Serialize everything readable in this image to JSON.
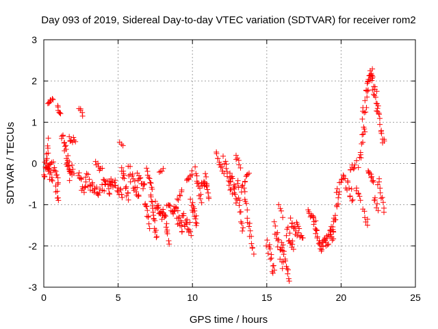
{
  "chart_data": {
    "type": "scatter",
    "title": "Day 093 of 2019, Sidereal Day-to-day VTEC variation (SDTVAR) for receiver rom2",
    "xlabel": "GPS time / hours",
    "ylabel": "SDTVAR / TECUs",
    "xlim": [
      0,
      25
    ],
    "ylim": [
      -3,
      3
    ],
    "x_ticks": [
      0,
      5,
      10,
      15,
      20,
      25
    ],
    "x_tick_labels": [
      "0",
      "5",
      "10",
      "15",
      "20",
      "25"
    ],
    "y_ticks": [
      -3,
      -2,
      -1,
      0,
      1,
      2,
      3
    ],
    "y_tick_labels": [
      "-3",
      "-2",
      "-1",
      "0",
      "1",
      "2",
      "3"
    ],
    "grid": true,
    "marker": "+",
    "color": "#ff0000",
    "segments": [
      {
        "t0": 0.0,
        "t1": 0.3,
        "y0": -0.4,
        "y1": 0.5,
        "n": 14,
        "spread": 0.18
      },
      {
        "t0": 0.1,
        "t1": 0.6,
        "y0": 0.0,
        "y1": -0.4,
        "n": 12,
        "spread": 0.15
      },
      {
        "t0": 0.3,
        "t1": 0.6,
        "y0": 1.45,
        "y1": 1.55,
        "n": 8,
        "spread": 0.04
      },
      {
        "t0": 0.3,
        "t1": 0.5,
        "y0": -0.2,
        "y1": 0.0,
        "n": 6,
        "spread": 0.1
      },
      {
        "t0": 0.6,
        "t1": 1.0,
        "y0": 0.0,
        "y1": -0.5,
        "n": 10,
        "spread": 0.12
      },
      {
        "t0": 0.9,
        "t1": 1.1,
        "y0": 1.4,
        "y1": 1.2,
        "n": 6,
        "spread": 0.05
      },
      {
        "t0": 0.8,
        "t1": 1.0,
        "y0": -0.6,
        "y1": -0.9,
        "n": 6,
        "spread": 0.08
      },
      {
        "t0": 1.2,
        "t1": 1.8,
        "y0": 0.8,
        "y1": -0.4,
        "n": 20,
        "spread": 0.2
      },
      {
        "t0": 1.7,
        "t1": 2.1,
        "y0": 0.6,
        "y1": 0.55,
        "n": 8,
        "spread": 0.07
      },
      {
        "t0": 1.6,
        "t1": 2.0,
        "y0": 0.2,
        "y1": -0.3,
        "n": 10,
        "spread": 0.15
      },
      {
        "t0": 2.4,
        "t1": 2.6,
        "y0": 1.35,
        "y1": 1.15,
        "n": 5,
        "spread": 0.05
      },
      {
        "t0": 2.3,
        "t1": 2.8,
        "y0": -0.3,
        "y1": -0.7,
        "n": 12,
        "spread": 0.15
      },
      {
        "t0": 2.8,
        "t1": 3.3,
        "y0": -0.3,
        "y1": -0.6,
        "n": 12,
        "spread": 0.15
      },
      {
        "t0": 3.3,
        "t1": 3.8,
        "y0": -0.6,
        "y1": -0.7,
        "n": 10,
        "spread": 0.1
      },
      {
        "t0": 3.5,
        "t1": 3.9,
        "y0": 0.1,
        "y1": -0.2,
        "n": 8,
        "spread": 0.1
      },
      {
        "t0": 3.9,
        "t1": 4.5,
        "y0": -0.5,
        "y1": -0.6,
        "n": 14,
        "spread": 0.15
      },
      {
        "t0": 4.4,
        "t1": 4.8,
        "y0": -0.4,
        "y1": -0.5,
        "n": 10,
        "spread": 0.12
      },
      {
        "t0": 4.8,
        "t1": 5.3,
        "y0": -0.6,
        "y1": -0.8,
        "n": 10,
        "spread": 0.12
      },
      {
        "t0": 5.1,
        "t1": 5.3,
        "y0": 0.5,
        "y1": 0.45,
        "n": 3,
        "spread": 0.03
      },
      {
        "t0": 5.2,
        "t1": 5.7,
        "y0": -0.1,
        "y1": -0.8,
        "n": 14,
        "spread": 0.15
      },
      {
        "t0": 5.7,
        "t1": 6.4,
        "y0": -0.1,
        "y1": -0.9,
        "n": 18,
        "spread": 0.18
      },
      {
        "t0": 6.3,
        "t1": 6.8,
        "y0": -0.3,
        "y1": -0.6,
        "n": 12,
        "spread": 0.12
      },
      {
        "t0": 6.8,
        "t1": 7.1,
        "y0": -0.9,
        "y1": -1.5,
        "n": 10,
        "spread": 0.12
      },
      {
        "t0": 6.9,
        "t1": 7.3,
        "y0": -0.2,
        "y1": -0.6,
        "n": 10,
        "spread": 0.1
      },
      {
        "t0": 7.2,
        "t1": 7.6,
        "y0": -0.8,
        "y1": -1.8,
        "n": 16,
        "spread": 0.15
      },
      {
        "t0": 7.5,
        "t1": 8.0,
        "y0": -1.0,
        "y1": -1.3,
        "n": 14,
        "spread": 0.12
      },
      {
        "t0": 7.8,
        "t1": 8.0,
        "y0": -0.2,
        "y1": -0.15,
        "n": 4,
        "spread": 0.03
      },
      {
        "t0": 8.0,
        "t1": 8.4,
        "y0": -1.0,
        "y1": -1.9,
        "n": 14,
        "spread": 0.15
      },
      {
        "t0": 8.3,
        "t1": 8.8,
        "y0": -1.0,
        "y1": -1.2,
        "n": 10,
        "spread": 0.1
      },
      {
        "t0": 8.8,
        "t1": 9.3,
        "y0": -1.0,
        "y1": -1.7,
        "n": 16,
        "spread": 0.15
      },
      {
        "t0": 9.0,
        "t1": 9.3,
        "y0": -0.9,
        "y1": -0.7,
        "n": 6,
        "spread": 0.06
      },
      {
        "t0": 9.3,
        "t1": 9.9,
        "y0": -1.3,
        "y1": -1.6,
        "n": 18,
        "spread": 0.15
      },
      {
        "t0": 9.6,
        "t1": 10.0,
        "y0": -0.4,
        "y1": -0.2,
        "n": 8,
        "spread": 0.05
      },
      {
        "t0": 9.9,
        "t1": 10.3,
        "y0": -1.0,
        "y1": -1.4,
        "n": 14,
        "spread": 0.15
      },
      {
        "t0": 10.2,
        "t1": 10.6,
        "y0": -0.2,
        "y1": -0.9,
        "n": 12,
        "spread": 0.15
      },
      {
        "t0": 10.6,
        "t1": 11.0,
        "y0": -0.4,
        "y1": -0.6,
        "n": 10,
        "spread": 0.1
      },
      {
        "t0": 10.9,
        "t1": 11.1,
        "y0": -0.3,
        "y1": -0.9,
        "n": 8,
        "spread": 0.08
      },
      {
        "t0": 11.6,
        "t1": 12.1,
        "y0": 0.2,
        "y1": -0.3,
        "n": 12,
        "spread": 0.1
      },
      {
        "t0": 12.1,
        "t1": 12.6,
        "y0": 0.1,
        "y1": -0.6,
        "n": 12,
        "spread": 0.15
      },
      {
        "t0": 12.5,
        "t1": 13.0,
        "y0": -0.3,
        "y1": -0.9,
        "n": 16,
        "spread": 0.2
      },
      {
        "t0": 12.9,
        "t1": 13.2,
        "y0": 0.2,
        "y1": -0.1,
        "n": 6,
        "spread": 0.08
      },
      {
        "t0": 13.0,
        "t1": 13.4,
        "y0": -0.4,
        "y1": -1.6,
        "n": 12,
        "spread": 0.15
      },
      {
        "t0": 13.3,
        "t1": 13.8,
        "y0": -0.6,
        "y1": -0.3,
        "n": 10,
        "spread": 0.1
      },
      {
        "t0": 13.5,
        "t1": 14.1,
        "y0": -0.8,
        "y1": -2.2,
        "n": 16,
        "spread": 0.15
      },
      {
        "t0": 15.0,
        "t1": 15.5,
        "y0": -1.9,
        "y1": -2.7,
        "n": 14,
        "spread": 0.2
      },
      {
        "t0": 15.5,
        "t1": 16.1,
        "y0": -1.6,
        "y1": -2.4,
        "n": 16,
        "spread": 0.2
      },
      {
        "t0": 15.8,
        "t1": 16.1,
        "y0": -1.0,
        "y1": -1.3,
        "n": 4,
        "spread": 0.05
      },
      {
        "t0": 16.0,
        "t1": 16.5,
        "y0": -1.9,
        "y1": -2.8,
        "n": 14,
        "spread": 0.15
      },
      {
        "t0": 16.3,
        "t1": 16.8,
        "y0": -1.6,
        "y1": -2.1,
        "n": 12,
        "spread": 0.15
      },
      {
        "t0": 16.6,
        "t1": 17.0,
        "y0": -1.4,
        "y1": -1.7,
        "n": 10,
        "spread": 0.1
      },
      {
        "t0": 17.0,
        "t1": 17.4,
        "y0": -1.5,
        "y1": -1.9,
        "n": 10,
        "spread": 0.12
      },
      {
        "t0": 17.8,
        "t1": 18.3,
        "y0": -1.1,
        "y1": -1.5,
        "n": 12,
        "spread": 0.12
      },
      {
        "t0": 18.2,
        "t1": 18.7,
        "y0": -1.5,
        "y1": -2.1,
        "n": 14,
        "spread": 0.12
      },
      {
        "t0": 18.7,
        "t1": 19.5,
        "y0": -2.0,
        "y1": -1.7,
        "n": 24,
        "spread": 0.18
      },
      {
        "t0": 19.3,
        "t1": 19.8,
        "y0": -1.8,
        "y1": -0.9,
        "n": 14,
        "spread": 0.15
      },
      {
        "t0": 19.7,
        "t1": 20.2,
        "y0": -0.8,
        "y1": -0.2,
        "n": 10,
        "spread": 0.15
      },
      {
        "t0": 20.2,
        "t1": 20.8,
        "y0": -0.4,
        "y1": -0.8,
        "n": 12,
        "spread": 0.15
      },
      {
        "t0": 20.6,
        "t1": 21.0,
        "y0": -0.2,
        "y1": 0.0,
        "n": 8,
        "spread": 0.08
      },
      {
        "t0": 21.0,
        "t1": 21.3,
        "y0": -0.6,
        "y1": -0.9,
        "n": 6,
        "spread": 0.08
      },
      {
        "t0": 21.2,
        "t1": 21.6,
        "y0": 0.0,
        "y1": 1.0,
        "n": 12,
        "spread": 0.2
      },
      {
        "t0": 21.4,
        "t1": 21.8,
        "y0": 1.0,
        "y1": 1.8,
        "n": 10,
        "spread": 0.2
      },
      {
        "t0": 21.5,
        "t1": 21.8,
        "y0": -1.1,
        "y1": -1.5,
        "n": 6,
        "spread": 0.1
      },
      {
        "t0": 21.7,
        "t1": 22.1,
        "y0": 1.8,
        "y1": 2.3,
        "n": 14,
        "spread": 0.15
      },
      {
        "t0": 21.8,
        "t1": 22.2,
        "y0": -0.2,
        "y1": -0.4,
        "n": 10,
        "spread": 0.1
      },
      {
        "t0": 22.0,
        "t1": 22.5,
        "y0": 2.1,
        "y1": 1.4,
        "n": 16,
        "spread": 0.2
      },
      {
        "t0": 22.2,
        "t1": 22.5,
        "y0": -0.8,
        "y1": -1.1,
        "n": 6,
        "spread": 0.1
      },
      {
        "t0": 22.4,
        "t1": 22.9,
        "y0": 1.4,
        "y1": 0.5,
        "n": 14,
        "spread": 0.15
      },
      {
        "t0": 22.5,
        "t1": 22.9,
        "y0": -0.4,
        "y1": -1.1,
        "n": 10,
        "spread": 0.12
      }
    ]
  }
}
